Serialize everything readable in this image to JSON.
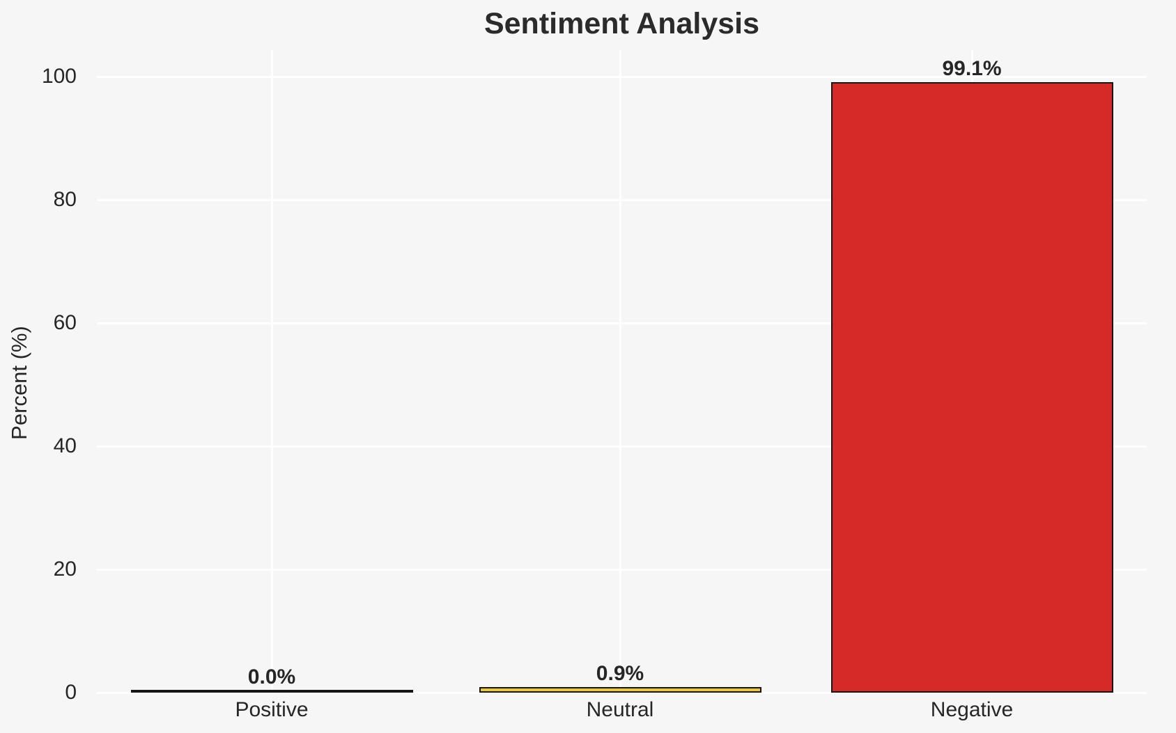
{
  "page": {
    "background": "#f6f6f7",
    "grid_color": "#ffffff",
    "text_color": "#262626",
    "bar_edge_color": "#151515"
  },
  "chart_data": {
    "type": "bar",
    "title": "Sentiment Analysis",
    "xlabel": "",
    "ylabel": "Percent (%)",
    "categories": [
      "Positive",
      "Neutral",
      "Negative"
    ],
    "values": [
      0.0,
      0.9,
      99.1
    ],
    "bar_labels": [
      "0.0%",
      "0.9%",
      "99.1%"
    ],
    "bar_colors": [
      null,
      "#f0c929",
      "#d62a28"
    ],
    "yticks": [
      0,
      20,
      40,
      60,
      80,
      100
    ],
    "ylim": [
      0,
      104
    ],
    "grid": "both",
    "legend": "none"
  }
}
